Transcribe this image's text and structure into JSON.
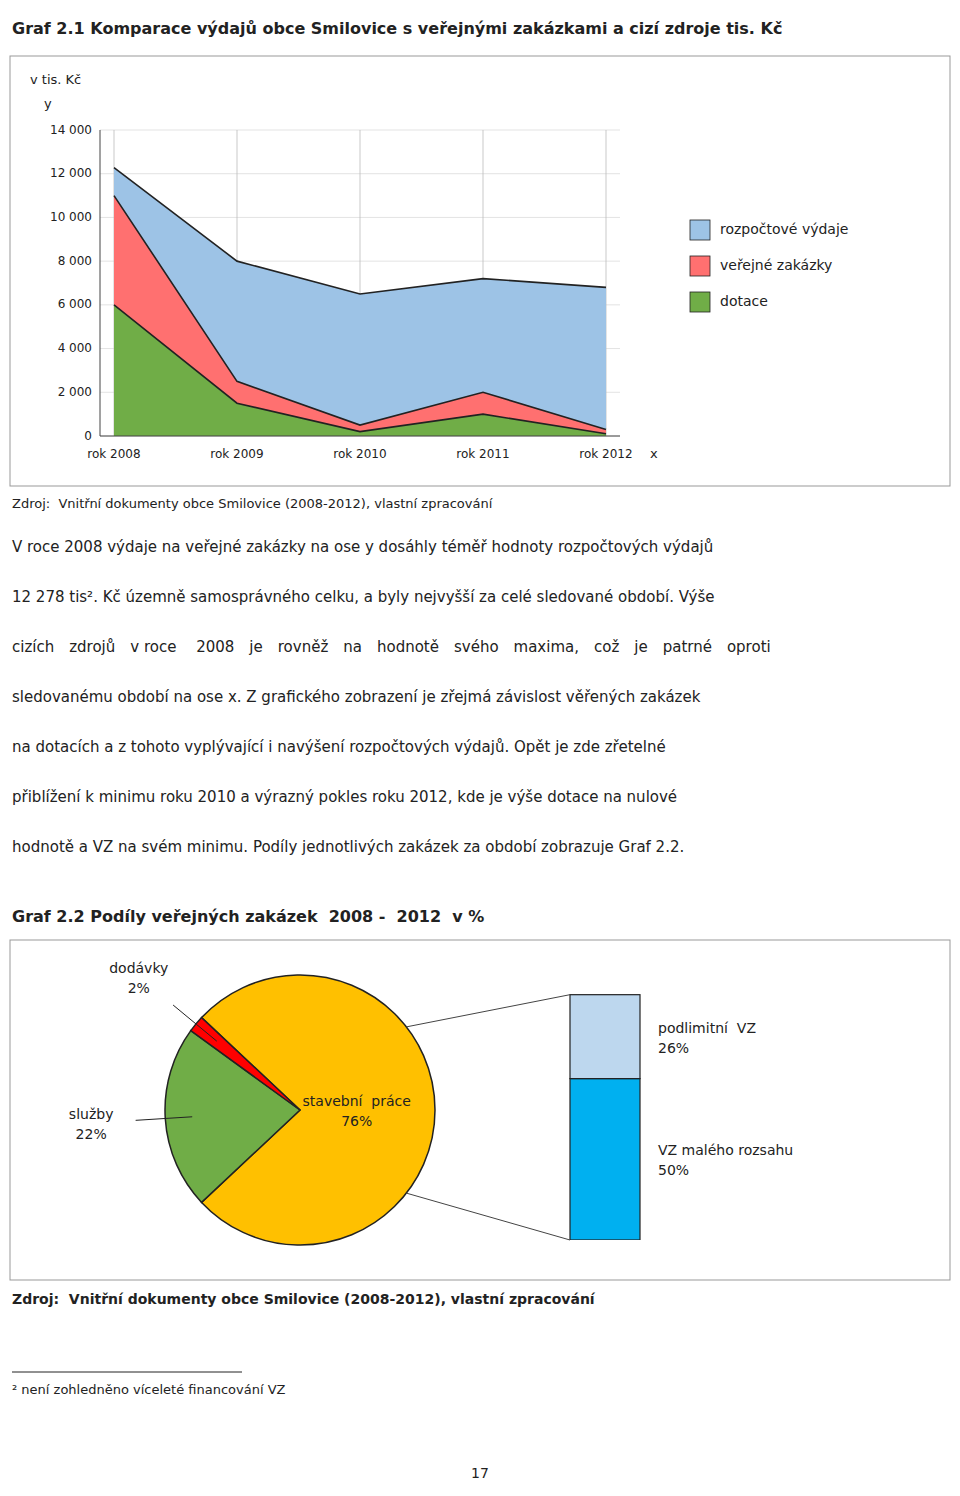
{
  "chart_data": [
    {
      "type": "area",
      "title": "Graf 2.1 Komparace výdajů obce Smilovice s veřejnými zakázkami a cizí zdroje tis. Kč",
      "ylabel": "v tis. Kč",
      "annotations": [
        "y",
        "x"
      ],
      "categories": [
        "rok 2008",
        "rok 2009",
        "rok 2010",
        "rok 2011",
        "rok 2012"
      ],
      "series": [
        {
          "name": "rozpočtové výdaje",
          "color": "#9DC3E6",
          "values": [
            12278,
            8000,
            6500,
            7200,
            6800
          ]
        },
        {
          "name": "veřejné zakázky",
          "color": "#FF7070",
          "values": [
            11000,
            2500,
            500,
            2000,
            300
          ]
        },
        {
          "name": "dotace",
          "color": "#70AD47",
          "values": [
            6000,
            1500,
            200,
            1000,
            100
          ]
        }
      ],
      "stacked": false,
      "ylim": [
        0,
        14000
      ],
      "yticks": [
        0,
        {
          "value": 2000,
          "label": "2 000"
        },
        {
          "value": 4000,
          "label": "4 000"
        },
        {
          "value": 6000,
          "label": "6 000"
        },
        {
          "value": 8000,
          "label": "8 000"
        },
        {
          "value": 10000,
          "label": "10 000"
        },
        {
          "value": 12000,
          "label": "12 000"
        },
        {
          "value": 14000,
          "label": "14 000"
        }
      ],
      "grid": true,
      "legend": "right",
      "source": "Zdroj:  Vnitřní dokumenty obce Smilovice (2008-2012), vlastní zpracování"
    },
    {
      "type": "pie",
      "title": "Graf 2.2 Podíly veřejných zakázek  2008 -  2012  v %",
      "categories": [
        "stavební  práce",
        "služby",
        "dodávky"
      ],
      "values": [
        76,
        22,
        2
      ],
      "value_labels": [
        "76%",
        "22%",
        "2%"
      ],
      "colors": [
        "#FFC000",
        "#70AD47",
        "#FF0000"
      ],
      "data_labels": true,
      "source": "Zdroj:  Vnitřní dokumenty obce Smilovice (2008-2012), vlastní zpracování"
    },
    {
      "type": "bar",
      "stacked": true,
      "series": [
        {
          "name": "VZ malého rozsahu",
          "color": "#00B0F0",
          "values": [
            50
          ],
          "value_labels": [
            "50%"
          ]
        },
        {
          "name": "podlimitní  VZ",
          "color": "#BDD7EE",
          "values": [
            26
          ],
          "value_labels": [
            "26%"
          ]
        }
      ],
      "ylim": [
        0,
        79
      ],
      "tick_labels": false,
      "data_labels": true
    }
  ],
  "text": [
    "V roce 2008 výdaje na veřejné zakázky na ose y dosáhly téměř hodnoty rozpočtových výdajů",
    "12 278 tis². Kč územně samosprávného celku, a byly nejvyšší za celé sledované období. Výše",
    "cizích zdrojů v roce  2008 je rovněž na hodnotě svého maxima, což je patrné oproti",
    "sledovanému období na ose x. Z grafického zobrazení je zřejmá závislost věřených zakázek",
    "na dotacích a z tohoto vyplývající i navýšení rozpočtových výdajů. Opět je zde zřetelné",
    "přiblížení k minimu roku 2010 a výrazný pokles roku 2012, kde je výše dotace na nulové",
    "hodnotě a VZ na svém minimu. Podíly jednotlivých zakázek za období zobrazuje Graf 2.2."
  ],
  "footnote": "² není zohledněno víceleté financování VZ",
  "page_number": "17"
}
